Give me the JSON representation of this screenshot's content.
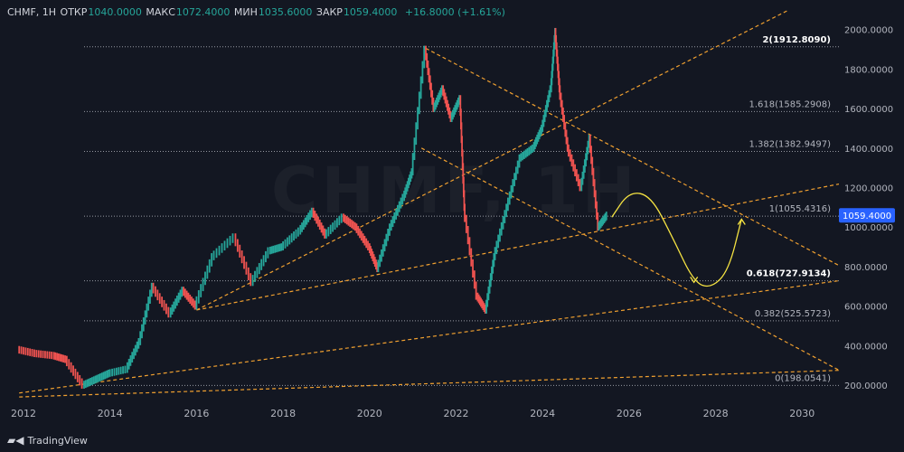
{
  "header": {
    "symbol": "CHMF, 1Н",
    "open_label": "ОТКР",
    "open_value": "1040.0000",
    "high_label": "МАКС",
    "high_value": "1072.4000",
    "low_label": "МИН",
    "low_value": "1035.6000",
    "close_label": "ЗАКР",
    "close_value": "1059.4000",
    "change": "+16.8000 (+1.61%)"
  },
  "watermark": "CHMF, 1Н",
  "footer": {
    "brand": "TradingView"
  },
  "colors": {
    "background": "#131722",
    "up_candle": "#26a69a",
    "down_candle": "#ef5350",
    "trendline": "#f0a030",
    "fib_line": "#9598a1",
    "projection": "#f5e342",
    "axis_text": "#b2b5be",
    "price_badge": "#2962ff"
  },
  "chart_data": {
    "type": "line",
    "title": "",
    "xlabel": "",
    "ylabel": "",
    "xlim": [
      2011.9,
      2030.9
    ],
    "ylim": [
      130,
      2100
    ],
    "x_ticks": [
      "2012",
      "2014",
      "2016",
      "2018",
      "2020",
      "2022",
      "2024",
      "2026",
      "2028",
      "2030"
    ],
    "x_tick_values": [
      2012,
      2014,
      2016,
      2018,
      2020,
      2022,
      2024,
      2026,
      2028,
      2030
    ],
    "y_ticks": [
      "200.0000",
      "400.0000",
      "600.0000",
      "800.0000",
      "1000.0000",
      "1200.0000",
      "1400.0000",
      "1600.0000",
      "1800.0000",
      "2000.0000"
    ],
    "y_tick_values": [
      200,
      400,
      600,
      800,
      1000,
      1200,
      1400,
      1600,
      1800,
      2000
    ],
    "current_price": {
      "label": "1059.4000",
      "value": 1059.4
    },
    "fib_levels": [
      {
        "label": "2(1912.8090)",
        "value": 1912.809,
        "bold": true
      },
      {
        "label": "1.618(1585.2908)",
        "value": 1585.2908,
        "bold": false
      },
      {
        "label": "1.382(1382.9497)",
        "value": 1382.9497,
        "bold": false
      },
      {
        "label": "1(1055.4316)",
        "value": 1055.4316,
        "bold": false
      },
      {
        "label": "0.618(727.9134)",
        "value": 727.9134,
        "bold": true
      },
      {
        "label": "0.382(525.5723)",
        "value": 525.5723,
        "bold": false
      },
      {
        "label": "0(198.0541)",
        "value": 198.0541,
        "bold": false
      }
    ],
    "price_series": {
      "x": [
        2011.9,
        2012.3,
        2012.7,
        2013.0,
        2013.4,
        2013.7,
        2014.0,
        2014.4,
        2014.7,
        2015.0,
        2015.4,
        2015.7,
        2016.0,
        2016.4,
        2016.9,
        2017.3,
        2017.7,
        2018.0,
        2018.4,
        2018.7,
        2019.0,
        2019.4,
        2019.7,
        2020.0,
        2020.2,
        2020.5,
        2020.8,
        2021.0,
        2021.3,
        2021.5,
        2021.7,
        2021.9,
        2022.1,
        2022.2,
        2022.5,
        2022.7,
        2022.9,
        2023.2,
        2023.5,
        2023.8,
        2024.0,
        2024.2,
        2024.3,
        2024.4,
        2024.6,
        2024.9,
        2025.1,
        2025.3,
        2025.5
      ],
      "y": [
        380,
        360,
        350,
        330,
        200,
        230,
        260,
        280,
        420,
        700,
        560,
        680,
        600,
        850,
        950,
        720,
        880,
        900,
        980,
        1080,
        960,
        1050,
        1000,
        900,
        790,
        1000,
        1150,
        1280,
        1900,
        1600,
        1700,
        1550,
        1650,
        1100,
        650,
        580,
        850,
        1100,
        1350,
        1400,
        1500,
        1700,
        1990,
        1700,
        1400,
        1200,
        1450,
        1000,
        1060
      ]
    },
    "trendlines": [
      {
        "x": [
          2011.9,
          2030.9
        ],
        "y": [
          140,
          275
        ]
      },
      {
        "x": [
          2011.9,
          2030.9
        ],
        "y": [
          160,
          730
        ]
      },
      {
        "x": [
          2016.0,
          2029.7
        ],
        "y": [
          580,
          2100
        ]
      },
      {
        "x": [
          2016.0,
          2030.9
        ],
        "y": [
          580,
          1220
        ]
      },
      {
        "x": [
          2021.3,
          2030.9
        ],
        "y": [
          1905,
          800
        ]
      },
      {
        "x": [
          2021.2,
          2030.9
        ],
        "y": [
          1400,
          270
        ]
      }
    ],
    "projection": {
      "x": [
        2025.6,
        2026.0,
        2026.5,
        2027.0,
        2027.5,
        2027.9,
        2028.3,
        2028.6
      ],
      "y": [
        1050,
        1180,
        1160,
        950,
        720,
        690,
        780,
        1040
      ]
    }
  }
}
